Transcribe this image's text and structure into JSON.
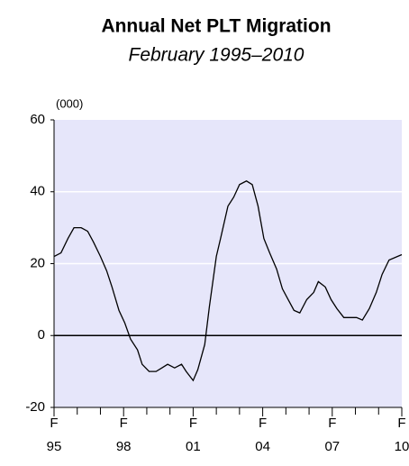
{
  "chart_data": {
    "type": "line",
    "title": "Annual Net PLT Migration",
    "subtitle": "February 1995–2010",
    "y_unit": "(000)",
    "x": [
      1995.0,
      1995.3,
      1995.6,
      1995.86,
      1996.17,
      1996.45,
      1996.7,
      1997.0,
      1997.27,
      1997.5,
      1997.8,
      1998.05,
      1998.3,
      1998.6,
      1998.8,
      1999.1,
      1999.4,
      1999.65,
      1999.9,
      2000.2,
      2000.5,
      2000.7,
      2001.0,
      2001.2,
      2001.5,
      2001.7,
      2002.0,
      2002.2,
      2002.5,
      2002.75,
      2003.0,
      2003.3,
      2003.55,
      2003.8,
      2004.05,
      2004.3,
      2004.6,
      2004.85,
      2005.1,
      2005.35,
      2005.6,
      2005.9,
      2006.2,
      2006.4,
      2006.7,
      2006.95,
      2007.2,
      2007.5,
      2007.8,
      2008.05,
      2008.3,
      2008.6,
      2008.9,
      2009.15,
      2009.45,
      2010.0
    ],
    "values": [
      22,
      23,
      27,
      30,
      30,
      29,
      26,
      22,
      18,
      13.5,
      7,
      3.5,
      -1,
      -4,
      -8,
      -10,
      -10,
      -9,
      -8,
      -9,
      -8,
      -10,
      -12.5,
      -9.5,
      -2.5,
      8,
      22,
      27.5,
      36,
      38.5,
      42,
      43,
      42,
      36,
      27,
      23,
      18.5,
      13,
      10,
      7,
      6.3,
      10,
      12,
      15,
      13.5,
      10,
      7.5,
      5,
      5,
      5,
      4.3,
      7.5,
      12,
      17,
      21,
      22.5
    ],
    "color": "#000000",
    "xlim": [
      1995,
      2010
    ],
    "xticks": [
      {
        "value": 1995,
        "label": "95"
      },
      1996,
      1997,
      {
        "value": 1998,
        "label": "98"
      },
      1999,
      2000,
      {
        "value": 2001,
        "label": "01"
      },
      2002,
      2003,
      {
        "value": 2004,
        "label": "04"
      },
      2005,
      2006,
      {
        "value": 2007,
        "label": "07"
      },
      2008,
      2009,
      {
        "value": 2010,
        "label": "10"
      }
    ],
    "xtick_month_label": "F",
    "ylim": [
      -20,
      60
    ],
    "yticks": [
      -20,
      0,
      20,
      40,
      60
    ],
    "grid": true,
    "background": "#e6e6fa"
  }
}
